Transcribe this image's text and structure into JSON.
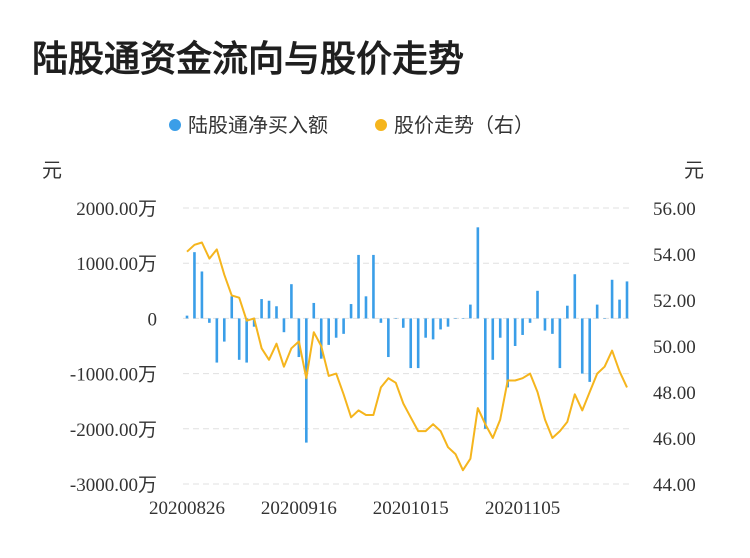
{
  "title": "陆股通资金流向与股价走势",
  "colors": {
    "bar": "#3a9ee8",
    "line": "#f5b51d",
    "grid": "#e0e0e0",
    "text": "#333333"
  },
  "chart_data": {
    "type": "bar+line",
    "legend": {
      "placement": "top-center",
      "bar_label": "陆股通净买入额",
      "line_label": "股价走势（右）"
    },
    "left_unit": "元",
    "right_unit": "元",
    "left_axis": {
      "min": -3000,
      "max": 2000,
      "ticks": [
        2000,
        1000,
        0,
        -1000,
        -2000,
        -3000
      ],
      "tick_labels": [
        "2000.00万",
        "1000.00万",
        "0",
        "-1000.00万",
        "-2000.00万",
        "-3000.00万"
      ]
    },
    "right_axis": {
      "min": 44,
      "max": 56,
      "ticks": [
        56,
        54,
        52,
        50,
        48,
        46,
        44
      ],
      "tick_labels": [
        "56.00",
        "54.00",
        "52.00",
        "50.00",
        "48.00",
        "46.00",
        "44.00"
      ]
    },
    "x_tick_labels": [
      {
        "index": 0,
        "label": "20200826"
      },
      {
        "index": 15,
        "label": "20200916"
      },
      {
        "index": 30,
        "label": "20201015"
      },
      {
        "index": 45,
        "label": "20201105"
      }
    ],
    "grid": true,
    "series": [
      {
        "name": "陆股通净买入额",
        "kind": "bar",
        "axis": "left",
        "values": [
          50,
          1200,
          850,
          -80,
          -800,
          -420,
          400,
          -750,
          -800,
          -150,
          350,
          320,
          220,
          -250,
          620,
          -700,
          -2250,
          280,
          -730,
          -480,
          -350,
          -280,
          260,
          1150,
          400,
          1150,
          -80,
          -700,
          0,
          -170,
          -900,
          -900,
          -350,
          -380,
          -200,
          -150,
          0,
          0,
          250,
          1650,
          -2000,
          -750,
          -350,
          -1250,
          -500,
          -300,
          -80,
          500,
          -220,
          -280,
          -900,
          230,
          800,
          -1000,
          -1150,
          250,
          0,
          700,
          340,
          670
        ]
      },
      {
        "name": "股价走势（右）",
        "kind": "line",
        "axis": "right",
        "values": [
          54.1,
          54.4,
          54.5,
          53.8,
          54.2,
          53.1,
          52.2,
          52.1,
          51.1,
          51.2,
          49.9,
          49.4,
          50.1,
          49.1,
          49.9,
          50.2,
          48.6,
          50.6,
          50.0,
          48.7,
          48.8,
          47.9,
          46.9,
          47.2,
          47.0,
          47.0,
          48.2,
          48.6,
          48.4,
          47.5,
          46.9,
          46.3,
          46.3,
          46.6,
          46.3,
          45.6,
          45.3,
          44.6,
          45.1,
          47.3,
          46.6,
          46.0,
          46.8,
          48.5,
          48.5,
          48.6,
          48.8,
          48.0,
          46.8,
          46.0,
          46.3,
          46.7,
          47.9,
          47.2,
          48.0,
          48.8,
          49.1,
          49.8,
          48.9,
          48.2
        ]
      }
    ]
  }
}
